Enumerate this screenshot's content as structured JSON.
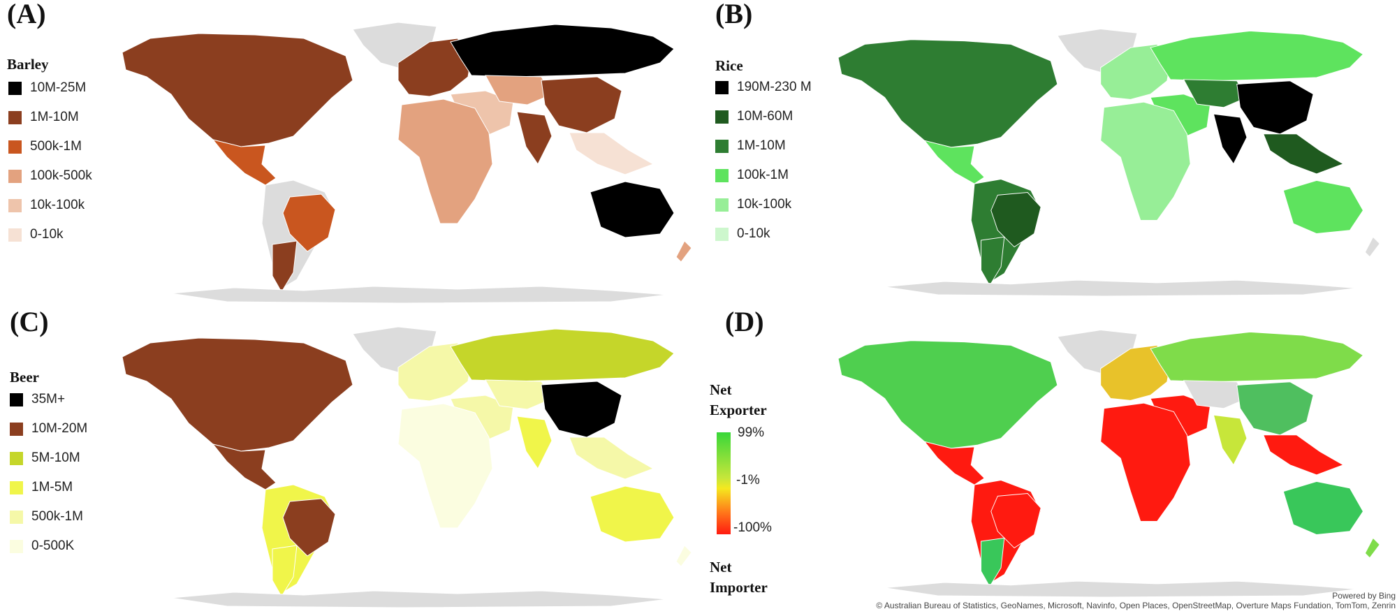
{
  "panels": {
    "a": {
      "label": "(A)",
      "legend_title": "Barley",
      "legend": [
        {
          "label": "10M-25M",
          "color": "#000000"
        },
        {
          "label": "1M-10M",
          "color": "#8b3e1f"
        },
        {
          "label": "500k-1M",
          "color": "#c9561f"
        },
        {
          "label": "100k-500k",
          "color": "#e3a27f"
        },
        {
          "label": "10k-100k",
          "color": "#eec4ab"
        },
        {
          "label": "0-10k",
          "color": "#f6e1d4"
        }
      ]
    },
    "b": {
      "label": "(B)",
      "legend_title": "Rice",
      "legend": [
        {
          "label": "190M-230 M",
          "color": "#000000"
        },
        {
          "label": "10M-60M",
          "color": "#1f5a1f"
        },
        {
          "label": "1M-10M",
          "color": "#2e7d32"
        },
        {
          "label": "100k-1M",
          "color": "#5ee35e"
        },
        {
          "label": "10k-100k",
          "color": "#97ee97"
        },
        {
          "label": "0-10k",
          "color": "#cdf7cd"
        }
      ]
    },
    "c": {
      "label": "(C)",
      "legend_title": "Beer",
      "legend": [
        {
          "label": "35M+",
          "color": "#000000"
        },
        {
          "label": "10M-20M",
          "color": "#8b3e1f"
        },
        {
          "label": "5M-10M",
          "color": "#c5d62a"
        },
        {
          "label": "1M-5M",
          "color": "#f0f54a"
        },
        {
          "label": "500k-1M",
          "color": "#f5f8a8"
        },
        {
          "label": "0-500K",
          "color": "#fbfde0"
        }
      ]
    },
    "d": {
      "label": "(D)",
      "legend_title_top": "Net Exporter",
      "legend_title_bottom": "Net Importer",
      "scale_labels": {
        "top": "99%",
        "mid": "-1%",
        "bottom": "-100%"
      },
      "scale_colors": {
        "top": "#39d739",
        "mid": "#f5e81f",
        "bottom": "#ff1a10"
      }
    }
  },
  "attribution": {
    "line1": "Powered by Bing",
    "line2": "© Australian Bureau of Statistics, GeoNames, Microsoft, Navinfo, Open Places, OpenStreetMap, Overture Maps Fundation, TomTom, Zenrin"
  },
  "map_colors": {
    "base": "#dcdcdc",
    "a": {
      "north_america": "#8b3e1f",
      "greenland": "#dcdcdc",
      "mexico": "#c9561f",
      "south_america": "#dcdcdc",
      "brazil": "#c9561f",
      "argentina": "#8b3e1f",
      "europe": "#8b3e1f",
      "russia": "#000000",
      "africa": "#e3a27f",
      "middle_east": "#eec4ab",
      "central_asia": "#e3a27f",
      "china": "#8b3e1f",
      "india": "#8b3e1f",
      "southeast_asia": "#f6e1d4",
      "australia": "#000000",
      "new_zealand": "#e3a27f",
      "antarctica": "#dcdcdc"
    },
    "b": {
      "north_america": "#2e7d32",
      "greenland": "#dcdcdc",
      "mexico": "#5ee35e",
      "south_america": "#2e7d32",
      "brazil": "#1f5a1f",
      "argentina": "#2e7d32",
      "europe": "#97ee97",
      "russia": "#5ee35e",
      "africa": "#97ee97",
      "middle_east": "#5ee35e",
      "central_asia": "#2e7d32",
      "china": "#000000",
      "india": "#000000",
      "southeast_asia": "#1f5a1f",
      "australia": "#5ee35e",
      "new_zealand": "#dcdcdc",
      "antarctica": "#dcdcdc"
    },
    "c": {
      "north_america": "#8b3e1f",
      "greenland": "#dcdcdc",
      "mexico": "#8b3e1f",
      "south_america": "#f0f54a",
      "brazil": "#8b3e1f",
      "argentina": "#f0f54a",
      "europe": "#f5f8a8",
      "russia": "#c5d62a",
      "africa": "#fbfde0",
      "middle_east": "#f5f8a8",
      "central_asia": "#f5f8a8",
      "china": "#000000",
      "india": "#f0f54a",
      "southeast_asia": "#f5f8a8",
      "australia": "#f0f54a",
      "new_zealand": "#fbfde0",
      "antarctica": "#dcdcdc"
    },
    "d": {
      "north_america": "#4fcf4f",
      "greenland": "#dcdcdc",
      "mexico": "#ff1a10",
      "south_america": "#ff1a10",
      "brazil": "#ff1a10",
      "argentina": "#39c75a",
      "europe": "#e8c22a",
      "russia": "#7fdc4a",
      "africa": "#ff1a10",
      "middle_east": "#ff1a10",
      "central_asia": "#dcdcdc",
      "china": "#4fbf5f",
      "india": "#c7e63a",
      "southeast_asia": "#ff1a10",
      "australia": "#39c75a",
      "new_zealand": "#7fdc4a",
      "antarctica": "#dcdcdc"
    }
  }
}
